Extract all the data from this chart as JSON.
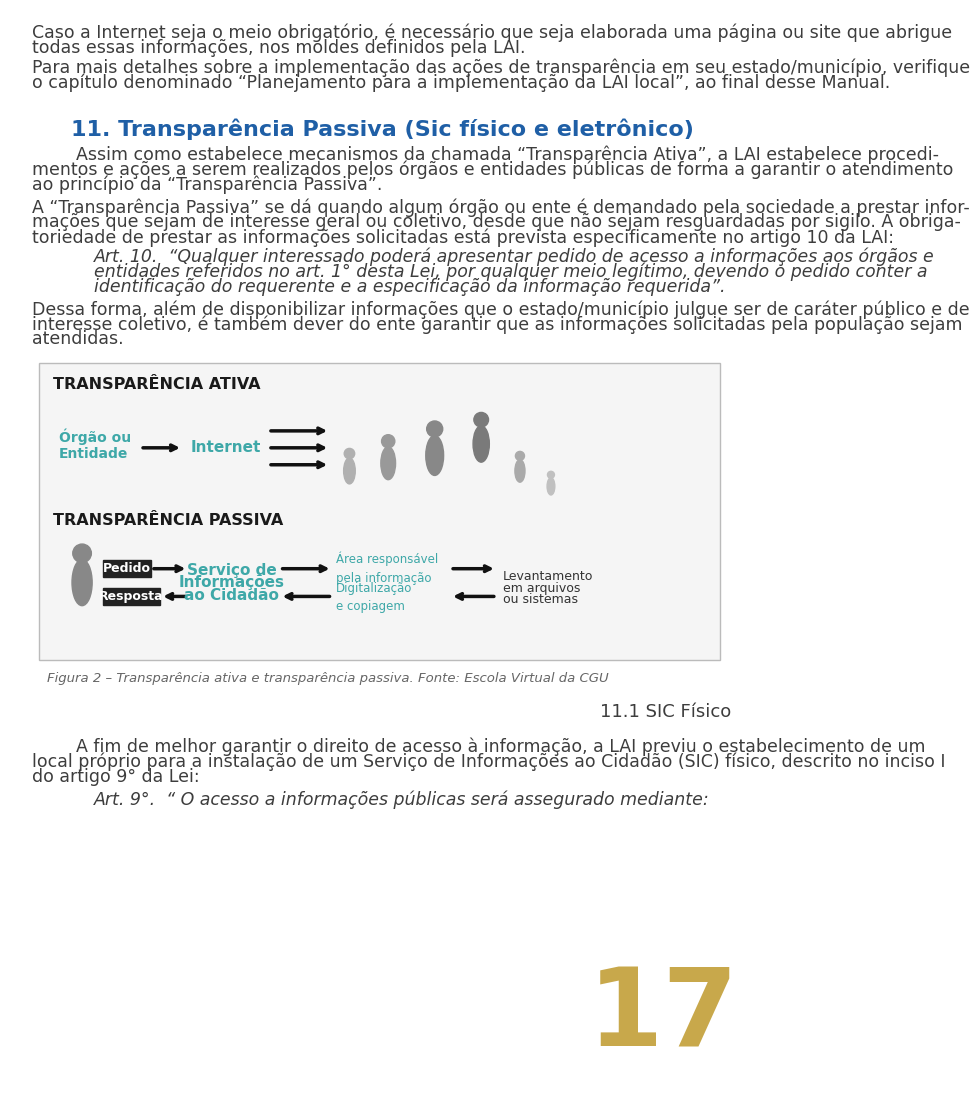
{
  "bg_color": "#ffffff",
  "text_color": "#3d3d3d",
  "title_color": "#1f5fa6",
  "teal_color": "#3ea8a8",
  "page_number": "17",
  "page_num_color": "#c8a84b",
  "para1_line1": "Caso a Internet seja o meio obrigatório, é necessário que seja elaborada uma página ou site que abrigue",
  "para1_line2": "todas essas informações, nos moldes definidos pela LAI.",
  "para2_line1": "Para mais detalhes sobre a implementação das ações de transparência em seu estado/município, verifique",
  "para2_line2": "o capítulo denominado “Planejamento para a implementação da LAI local”, ao final desse Manual.",
  "section_title": "11. Transparência Passiva (Sic físico e eletrônico)",
  "body1_lines": [
    "        Assim como estabelece mecanismos da chamada “Transparência Ativa”, a LAI estabelece procedi-",
    "mentos e ações a serem realizados pelos órgãos e entidades públicas de forma a garantir o atendimento",
    "ao princípio da “Transparência Passiva”."
  ],
  "body2_lines": [
    "A “Transparência Passiva” se dá quando algum órgão ou ente é demandado pela sociedade a prestar infor-",
    "mações que sejam de interesse geral ou coletivo, desde que não sejam resguardadas por sigilo. A obriga-",
    "toriedade de prestar as informações solicitadas está prevista especificamente no artigo 10 da LAI:"
  ],
  "art10_lines": [
    "Art. 10.  “Qualquer interessado poderá apresentar pedido de acesso a informações aos órgãos e",
    "entidades referidos no art. 1° desta Lei, por qualquer meio legítimo, devendo o pedido conter a",
    "identificação do requerente e a especificação da informação requerida”."
  ],
  "body3_lines": [
    "Dessa forma, além de disponibilizar informações que o estado/município julgue ser de caráter público e de",
    "interesse coletivo, é também dever do ente garantir que as informações solicitadas pela população sejam",
    "atendidas."
  ],
  "fig_caption": "Figura 2 – Transparência ativa e transparência passiva. Fonte: Escola Virtual da CGU",
  "subsection": "11.1 SIC Físico",
  "body4_lines": [
    "        A fim de melhor garantir o direito de acesso à informação, a LAI previu o estabelecimento de um",
    "local próprio para a instalação de um Serviço de Informações ao Cidadão (SIC) físico, descrito no inciso I",
    "do artigo 9° da Lei:"
  ],
  "art9_line": "Art. 9°.  “ O acesso a informações públicas será assegurado mediante:"
}
